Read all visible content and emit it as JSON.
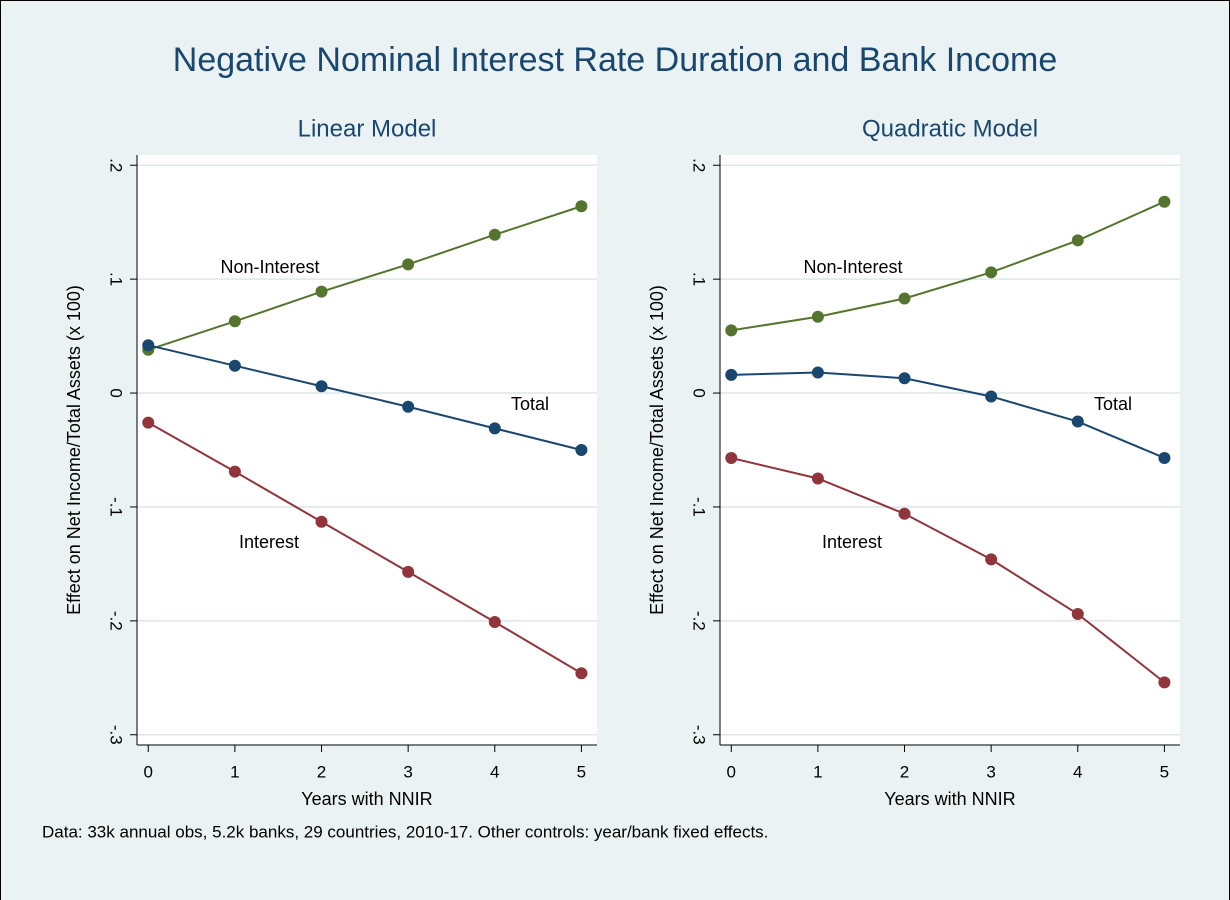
{
  "title": "Negative Nominal Interest Rate Duration and Bank Income",
  "note": "Data: 33k annual obs, 5.2k banks, 29 countries, 2010-17.  Other controls: year/bank fixed effects.",
  "chart_data": [
    {
      "type": "line",
      "title": "Linear Model",
      "x": [
        0,
        1,
        2,
        3,
        4,
        5
      ],
      "series": [
        {
          "name": "Non-Interest",
          "color": "#55752f",
          "values": [
            0.038,
            0.063,
            0.089,
            0.113,
            0.139,
            0.164
          ]
        },
        {
          "name": "Total",
          "color": "#1a476f",
          "values": [
            0.042,
            0.024,
            0.006,
            -0.012,
            -0.031,
            -0.05
          ]
        },
        {
          "name": "Interest",
          "color": "#90353b",
          "values": [
            -0.026,
            -0.069,
            -0.113,
            -0.157,
            -0.201,
            -0.246
          ]
        }
      ],
      "xlim": [
        -0.13,
        5.18
      ],
      "ylim": [
        -0.309,
        0.209
      ],
      "xticks": [
        0,
        1,
        2,
        3,
        4,
        5
      ],
      "yticks": [
        {
          "value": -0.3,
          "label": "-.3"
        },
        {
          "value": -0.2,
          "label": "-.2"
        },
        {
          "value": -0.1,
          "label": "-.1"
        },
        0,
        {
          "value": 0.1,
          "label": ".1"
        },
        {
          "value": 0.2,
          "label": ".2"
        }
      ],
      "xlabel": "Years with NNIR",
      "ylabel": "Effect on Net Income/Total Assets (x 100)",
      "grid": true
    },
    {
      "type": "line",
      "title": "Quadratic Model",
      "x": [
        0,
        1,
        2,
        3,
        4,
        5
      ],
      "series": [
        {
          "name": "Non-Interest",
          "color": "#55752f",
          "values": [
            0.055,
            0.067,
            0.083,
            0.106,
            0.134,
            0.168
          ]
        },
        {
          "name": "Total",
          "color": "#1a476f",
          "values": [
            0.016,
            0.018,
            0.013,
            -0.003,
            -0.025,
            -0.057
          ]
        },
        {
          "name": "Interest",
          "color": "#90353b",
          "values": [
            -0.057,
            -0.075,
            -0.106,
            -0.146,
            -0.194,
            -0.254
          ]
        }
      ],
      "xlim": [
        -0.13,
        5.18
      ],
      "ylim": [
        -0.309,
        0.209
      ],
      "xticks": [
        0,
        1,
        2,
        3,
        4,
        5
      ],
      "yticks": [
        {
          "value": -0.3,
          "label": "-.3"
        },
        {
          "value": -0.2,
          "label": "-.2"
        },
        {
          "value": -0.1,
          "label": "-.1"
        },
        0,
        {
          "value": 0.1,
          "label": ".1"
        },
        {
          "value": 0.2,
          "label": ".2"
        }
      ],
      "xlabel": "Years with NNIR",
      "ylabel": "Effect on Net Income/Total Assets (x 100)",
      "grid": true
    }
  ]
}
